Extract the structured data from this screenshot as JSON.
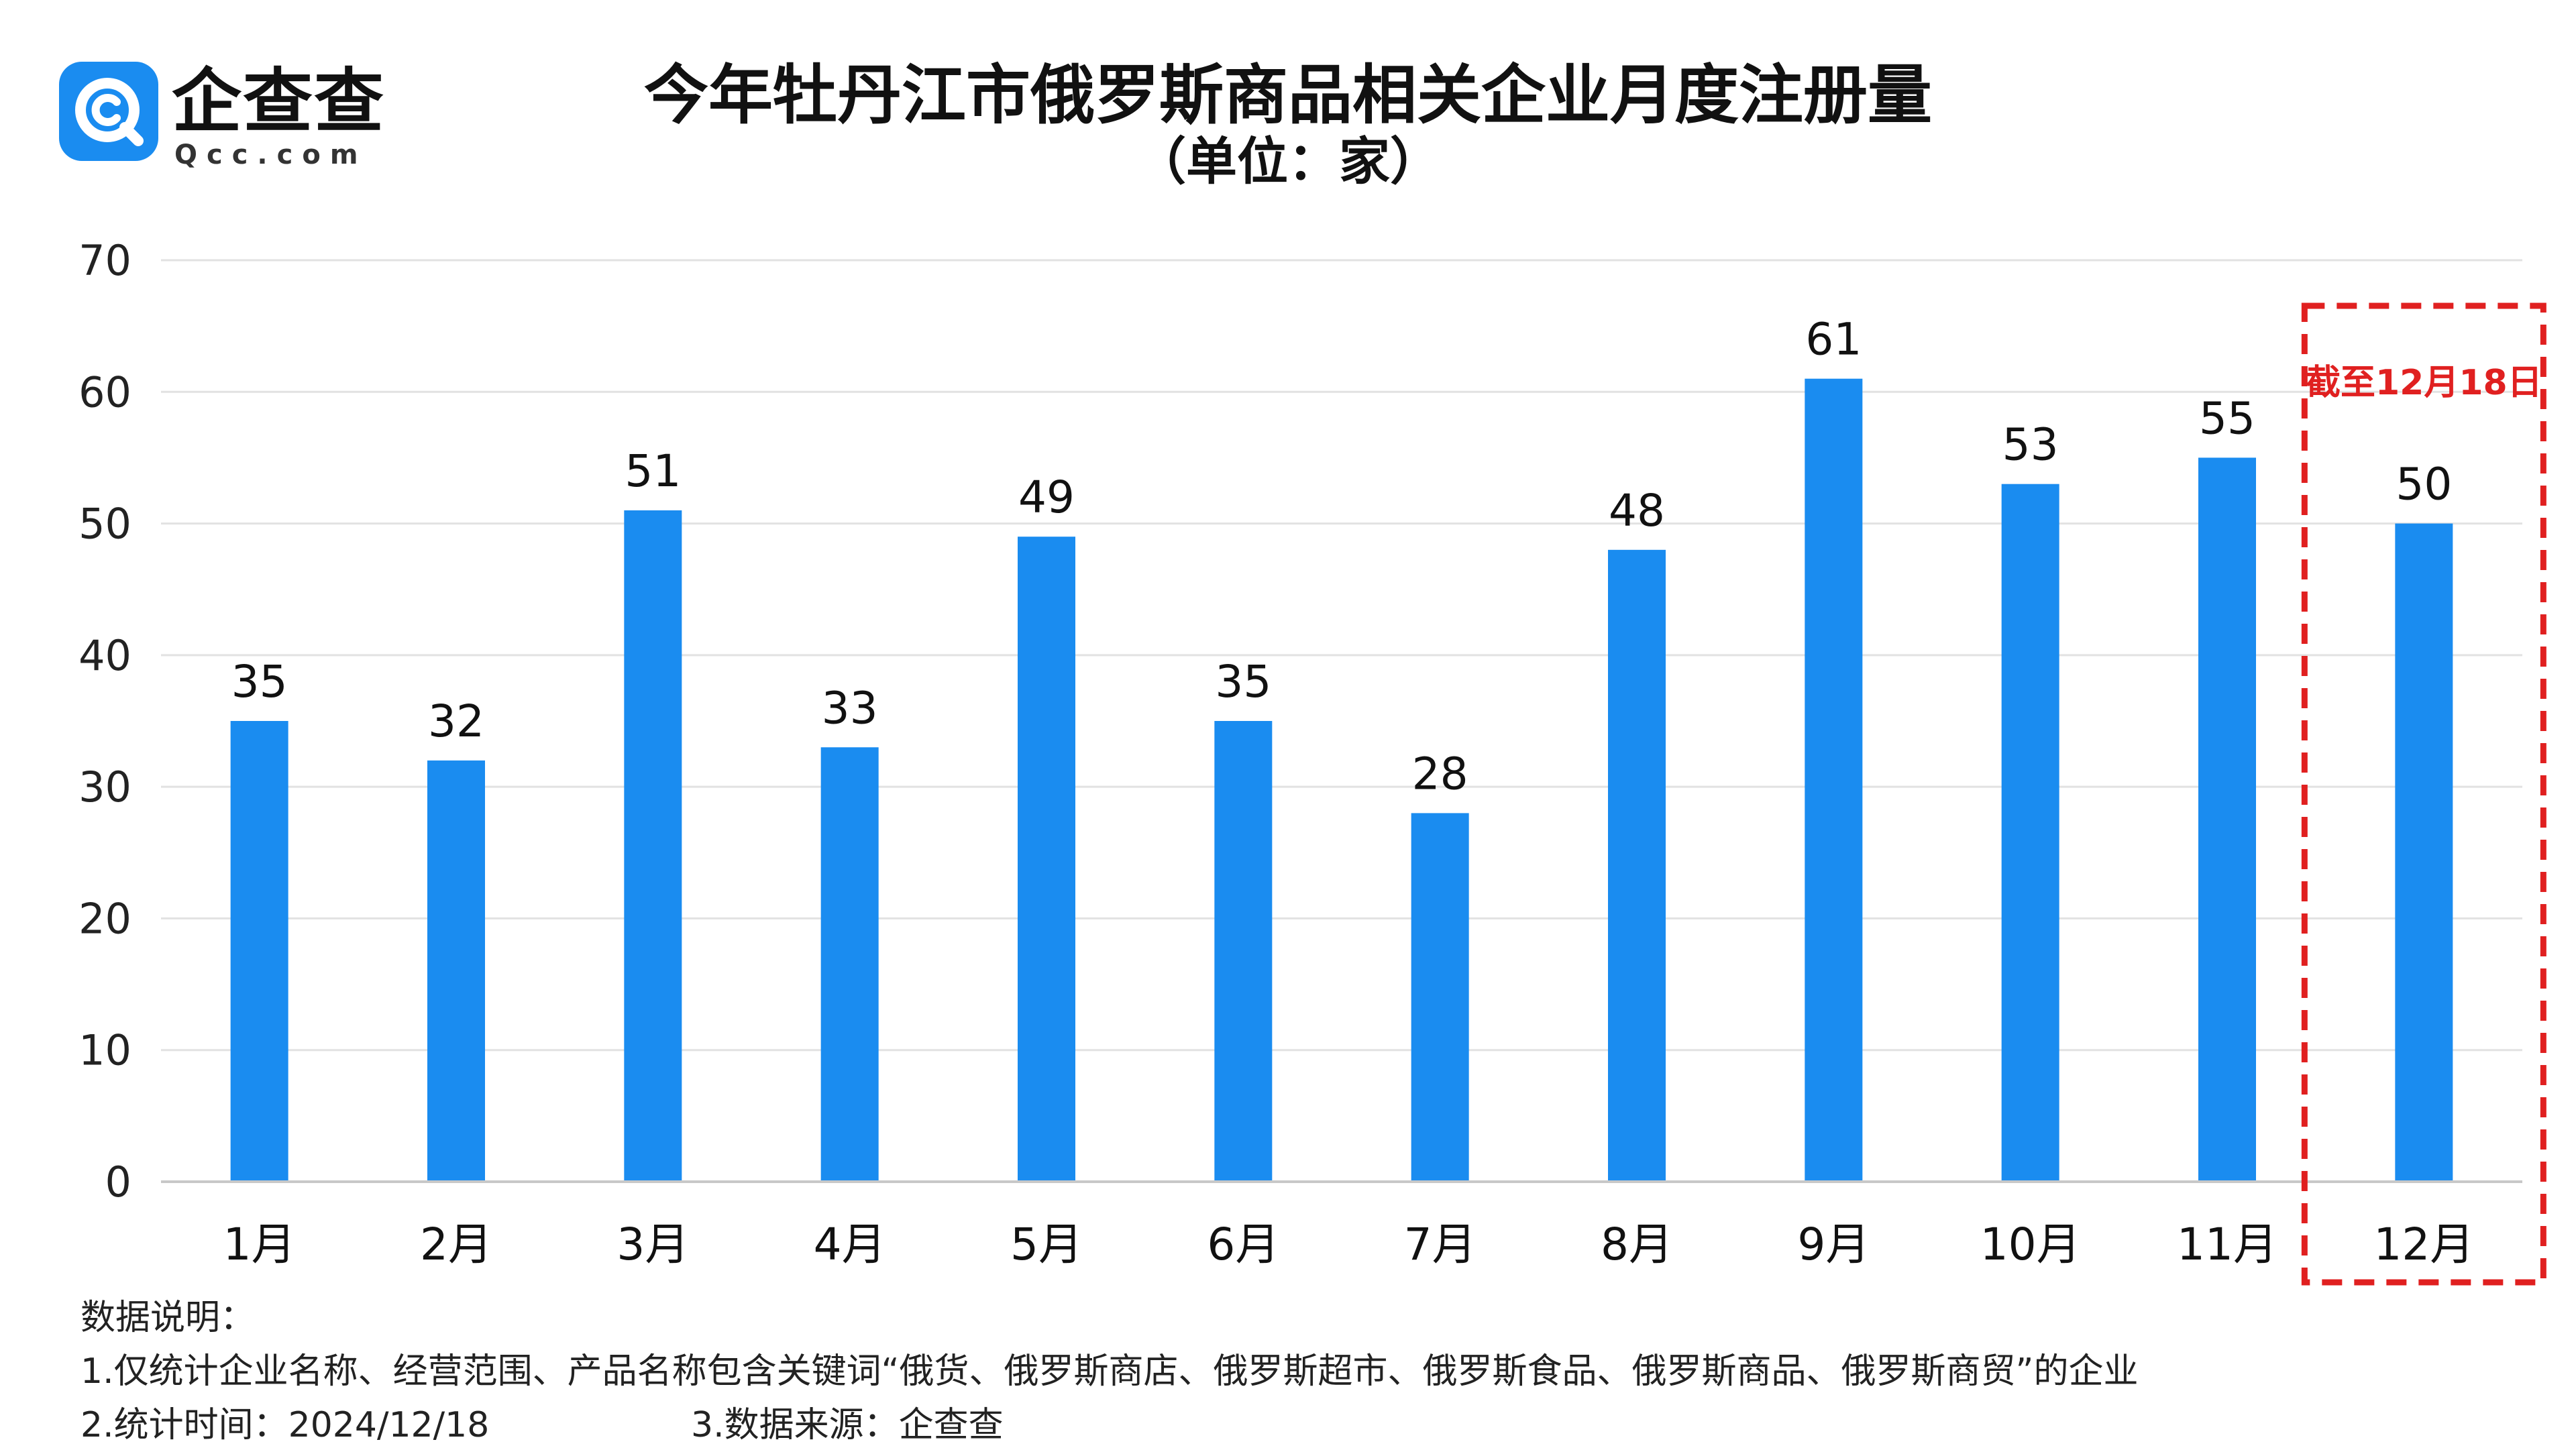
{
  "logo": {
    "icon": "qcc-logo-icon",
    "name": "企查查",
    "domain": "Qcc.com"
  },
  "chart_data": {
    "type": "bar",
    "title": "今年牡丹江市俄罗斯商品相关企业月度注册量",
    "subtitle": "（单位：家）",
    "xlabel": "",
    "ylabel": "",
    "categories": [
      "1月",
      "2月",
      "3月",
      "4月",
      "5月",
      "6月",
      "7月",
      "8月",
      "9月",
      "10月",
      "11月",
      "12月"
    ],
    "values": [
      35,
      32,
      51,
      33,
      49,
      35,
      28,
      48,
      61,
      53,
      55,
      50
    ],
    "ylim": [
      0,
      70
    ],
    "yticks": [
      0,
      10,
      20,
      30,
      40,
      50,
      60,
      70
    ],
    "grid": true,
    "bar_color": "#1a8cf0",
    "annotation": {
      "text": "截至12月18日",
      "category": "12月",
      "color": "#e02020",
      "style": "dashed-box"
    }
  },
  "notes": {
    "heading": "数据说明：",
    "line1": "1.仅统计企业名称、经营范围、产品名称包含关键词“俄货、俄罗斯商店、俄罗斯超市、俄罗斯食品、俄罗斯商品、俄罗斯商贸”的企业",
    "line2": "2.统计时间：2024/12/18",
    "line3": "3.数据来源：企查查"
  }
}
